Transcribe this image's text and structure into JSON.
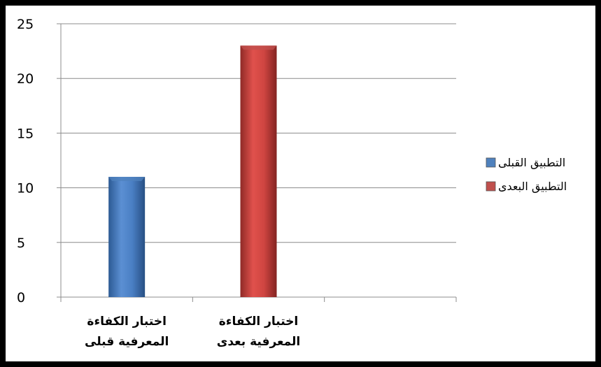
{
  "chart_data": {
    "type": "bar",
    "categories": [
      [
        "اختبار الكفاءة",
        "المعرفية قبلى"
      ],
      [
        "اختبار الكفاءة",
        "المعرفية بعدى"
      ]
    ],
    "series": [
      {
        "name": "التطبيق القبلى",
        "color": "#4f81bd",
        "values": [
          11,
          null
        ]
      },
      {
        "name": "التطبيق البعدى",
        "color": "#c0504d",
        "values": [
          null,
          23
        ]
      }
    ],
    "ylim": [
      0,
      25
    ],
    "yticks": [
      0,
      5,
      10,
      15,
      20,
      25
    ],
    "grid": true,
    "legend_position": "right"
  }
}
